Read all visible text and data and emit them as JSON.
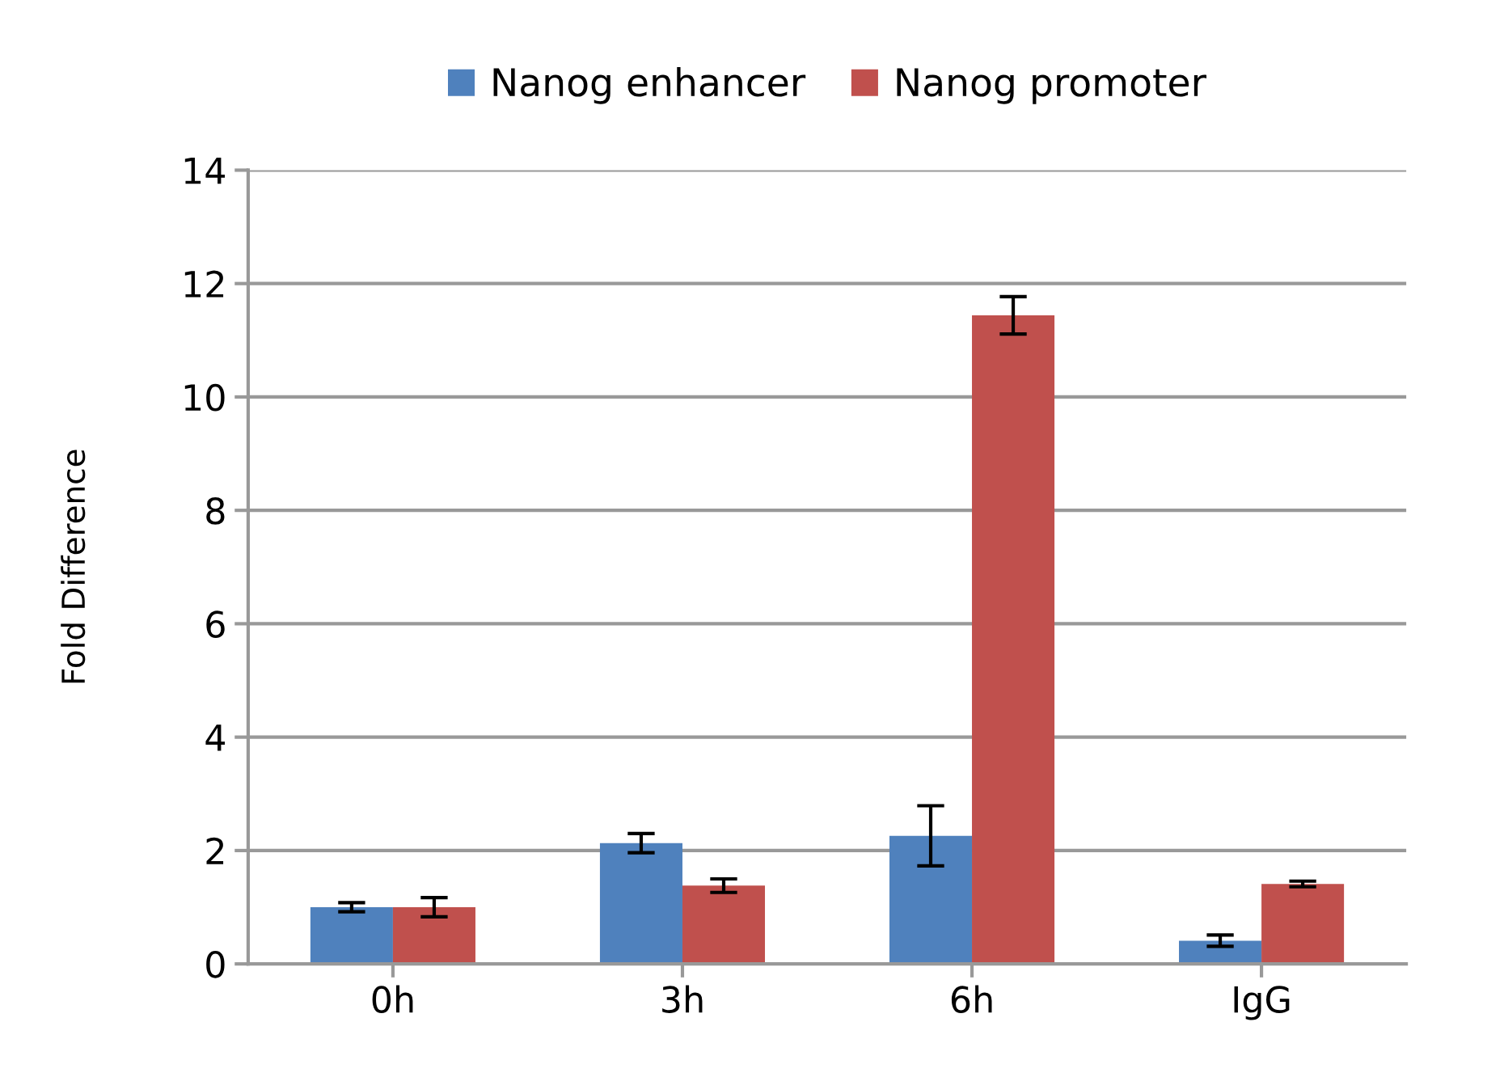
{
  "chart_data": {
    "type": "bar",
    "ylabel": "Fold Difference",
    "categories": [
      "0h",
      "3h",
      "6h",
      "IgG"
    ],
    "series": [
      {
        "name": "Nanog enhancer",
        "color": "#4f81bd",
        "values": [
          1.0,
          2.13,
          2.26,
          0.41
        ],
        "errors": [
          0.08,
          0.17,
          0.53,
          0.1
        ]
      },
      {
        "name": "Nanog promoter",
        "color": "#c0504d",
        "values": [
          1.0,
          1.38,
          11.44,
          1.41
        ],
        "errors": [
          0.17,
          0.12,
          0.33,
          0.05
        ]
      }
    ],
    "ylim": [
      0,
      14
    ],
    "yticks": [
      0,
      2,
      4,
      6,
      8,
      10,
      12,
      14
    ],
    "grid": "y",
    "legend": "top"
  }
}
